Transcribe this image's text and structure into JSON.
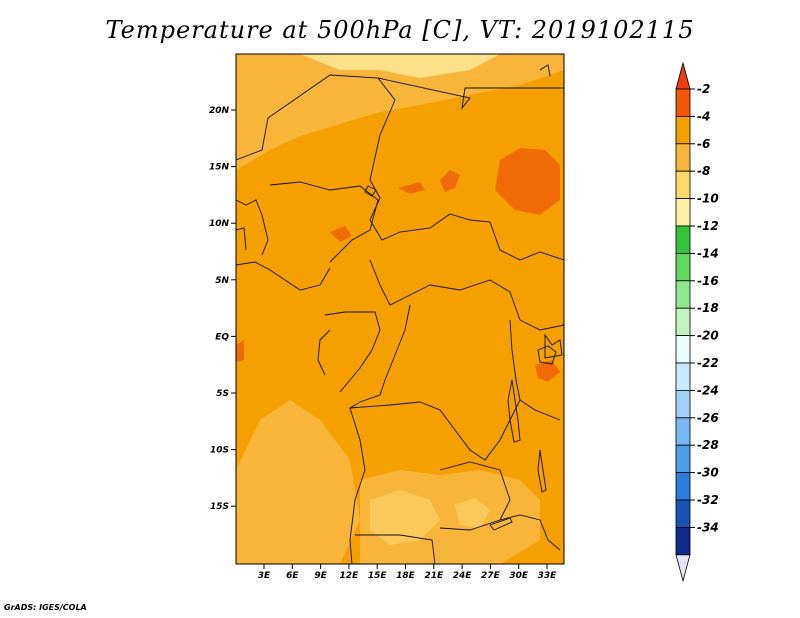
{
  "title": "Temperature at 500hPa [C], VT: 2019102115",
  "credit": "GrADS: IGES/COLA",
  "map": {
    "lat_ticks": [
      "20N",
      "15N",
      "10N",
      "5N",
      "EQ",
      "5S",
      "10S",
      "15S"
    ],
    "lon_ticks": [
      "3E",
      "6E",
      "9E",
      "12E",
      "15E",
      "18E",
      "21E",
      "24E",
      "27E",
      "30E",
      "33E"
    ],
    "base_color": "#f5a000",
    "warm_patch_color": "#f06a05",
    "cool_patch_colors": [
      "#f8b53a",
      "#fbc95a",
      "#fde08a"
    ]
  },
  "colorbar": {
    "labels": [
      "-2",
      "-4",
      "-6",
      "-8",
      "-10",
      "-12",
      "-14",
      "-16",
      "-18",
      "-20",
      "-22",
      "-24",
      "-26",
      "-28",
      "-30",
      "-32",
      "-34"
    ],
    "colors": [
      "#f0570a",
      "#f5a000",
      "#f8b53a",
      "#fbda6a",
      "#fff0a8",
      "#33c23a",
      "#5fd85d",
      "#8ee88a",
      "#bff4bd",
      "#e8fcfc",
      "#c8e9fb",
      "#a2d2f6",
      "#78b8f0",
      "#4e9de8",
      "#2d7ddd",
      "#1852b5",
      "#0e2a8a"
    ],
    "top_triangle_color": "#f03a10",
    "bottom_triangle_color": "#e4e4f8"
  }
}
